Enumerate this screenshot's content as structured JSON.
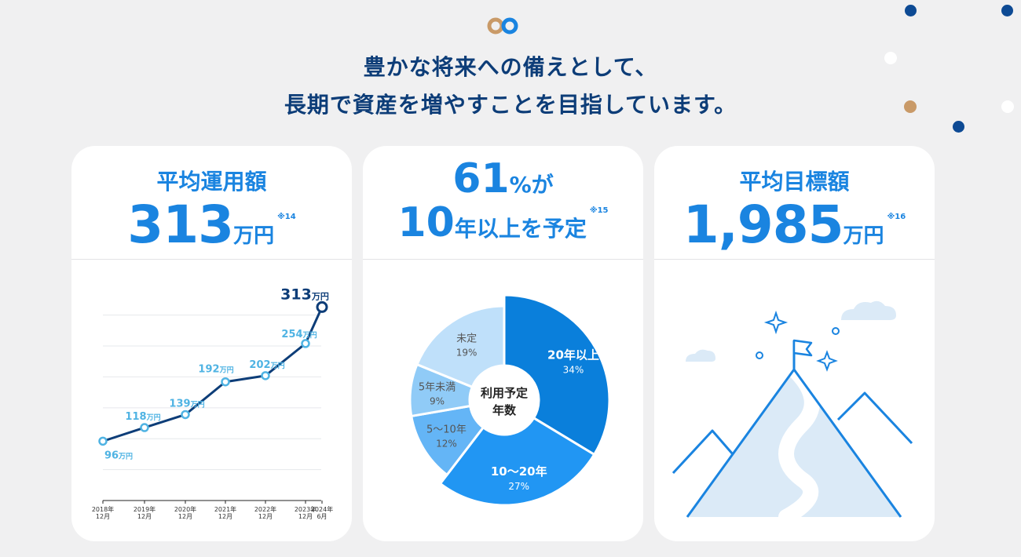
{
  "header": {
    "line1": "豊かな将来への備えとして、",
    "line2": "長期で資産を増やすことを目指しています。"
  },
  "colors": {
    "navy": "#0d3d78",
    "blue": "#1a84e0",
    "light_blue": "#4fb3e3",
    "gold": "#c99a68"
  },
  "cards": {
    "avg_amount": {
      "title": "平均運用額",
      "value": "313",
      "unit": "万円",
      "note": "※14"
    },
    "period": {
      "percent": "61",
      "percent_suffix": "%が",
      "line2_num": "10",
      "line2_text": "年以上を予定",
      "note": "※15"
    },
    "target": {
      "title": "平均目標額",
      "value": "1,985",
      "unit": "万円",
      "note": "※16"
    }
  },
  "chart_data": [
    {
      "type": "line",
      "x": [
        "2018年12月",
        "2019年12月",
        "2020年12月",
        "2021年12月",
        "2022年12月",
        "2023年12月",
        "2024年6月"
      ],
      "x_tick_labels": [
        [
          "2018年",
          "12月"
        ],
        [
          "2019年",
          "12月"
        ],
        [
          "2020年",
          "12月"
        ],
        [
          "2021年",
          "12月"
        ],
        [
          "2022年",
          "12月"
        ],
        [
          "2023年",
          "12月"
        ],
        [
          "2024年",
          "6月"
        ]
      ],
      "series": [
        {
          "values": [
            96,
            118,
            139,
            192,
            202,
            254,
            313
          ]
        }
      ],
      "value_unit": "万円",
      "ylim": [
        0,
        330
      ],
      "grid": true
    },
    {
      "type": "pie",
      "center_label": [
        "利用予定",
        "年数"
      ],
      "slices": [
        {
          "label": "20年以上",
          "value": 34,
          "display": "34%",
          "color": "#0a7fdb"
        },
        {
          "label": "10～20年",
          "value": 27,
          "display": "27%",
          "color": "#2196f3"
        },
        {
          "label": "5～10年",
          "value": 12,
          "display": "12%",
          "color": "#64b5f6"
        },
        {
          "label": "5年未満",
          "value": 9,
          "display": "9%",
          "color": "#90cbf7"
        },
        {
          "label": "未定",
          "value": 19,
          "display": "19%",
          "color": "#bfe0fa"
        }
      ]
    }
  ]
}
